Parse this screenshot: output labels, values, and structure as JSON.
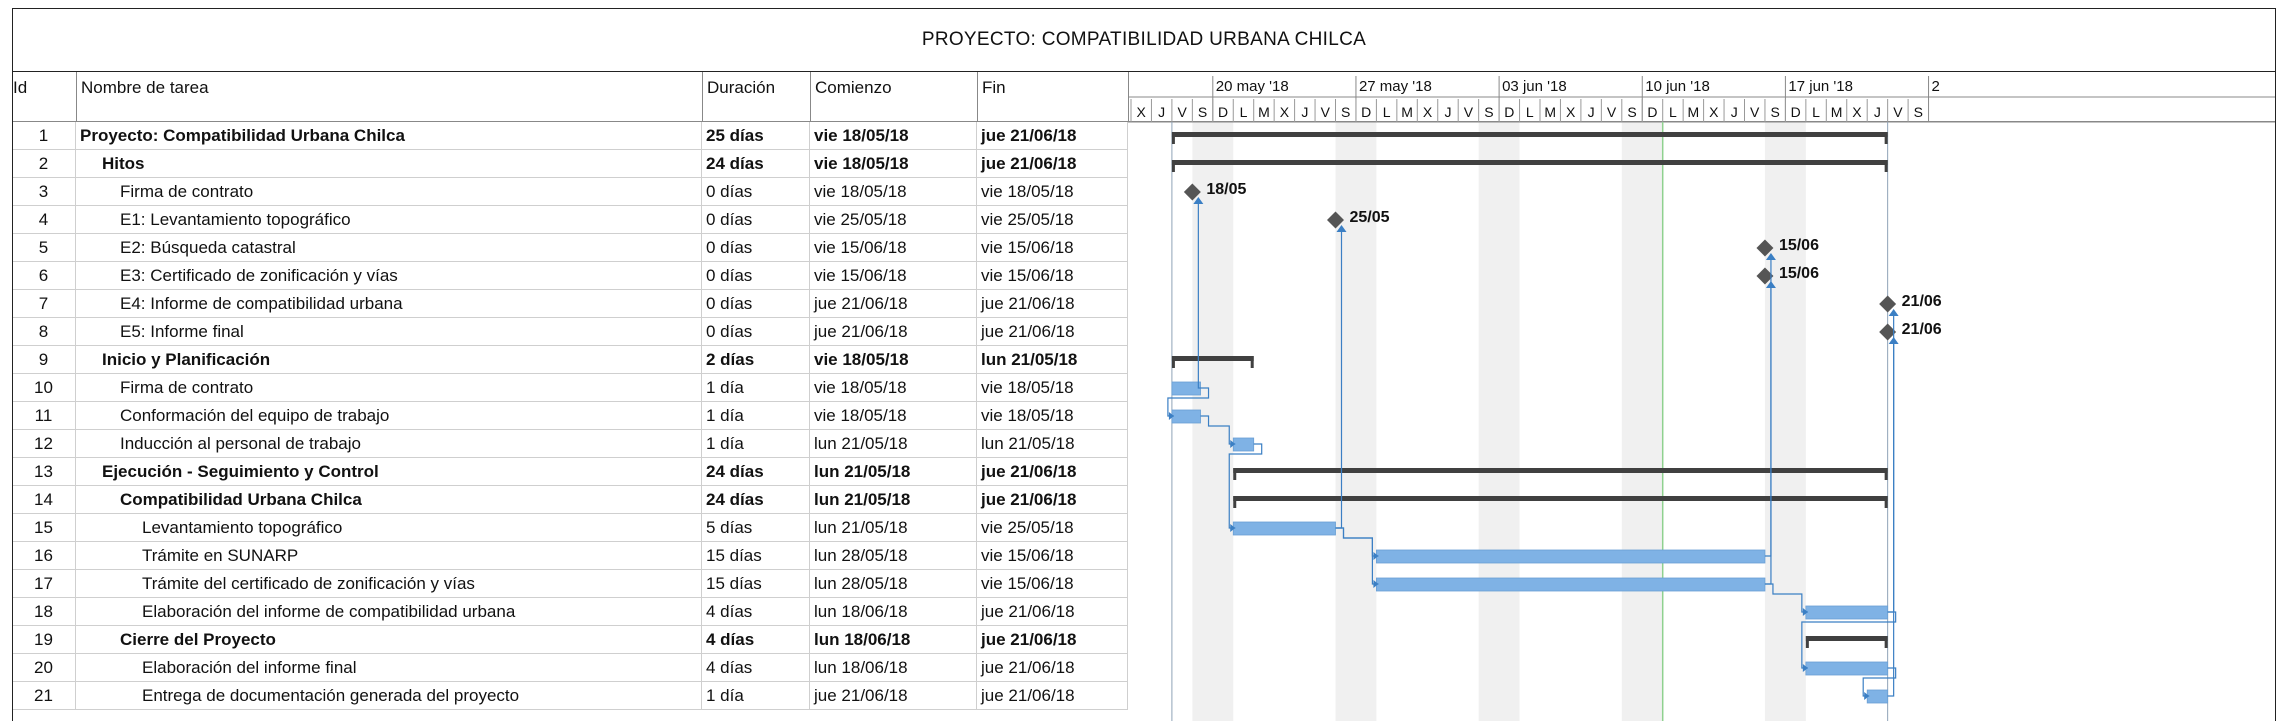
{
  "title": "PROYECTO: COMPATIBILIDAD URBANA CHILCA",
  "columns": {
    "id": "Id",
    "name": "Nombre de tarea",
    "duration": "Duración",
    "start": "Comienzo",
    "end": "Fin"
  },
  "timescale": {
    "weeks": [
      "20 may '18",
      "27 may '18",
      "03 jun '18",
      "10 jun '18",
      "17 jun '18",
      "2"
    ],
    "days": [
      "X",
      "J",
      "V",
      "S",
      "D",
      "L",
      "M",
      "X",
      "J",
      "V",
      "S",
      "D",
      "L",
      "M",
      "X",
      "J",
      "V",
      "S",
      "D",
      "L",
      "M",
      "X",
      "J",
      "V",
      "S",
      "D",
      "L",
      "M",
      "X",
      "J",
      "V",
      "S",
      "D",
      "L",
      "M",
      "X",
      "J",
      "V",
      "S"
    ]
  },
  "tasks": [
    {
      "id": "1",
      "name": "Proyecto: Compatibilidad Urbana Chilca",
      "duration": "25 días",
      "start": "vie 18/05/18",
      "end": "jue 21/06/18",
      "level": 0,
      "bold": true
    },
    {
      "id": "2",
      "name": "Hitos",
      "duration": "24 días",
      "start": "vie 18/05/18",
      "end": "jue 21/06/18",
      "level": 1,
      "bold": true
    },
    {
      "id": "3",
      "name": "Firma de contrato",
      "duration": "0 días",
      "start": "vie 18/05/18",
      "end": "vie 18/05/18",
      "level": 2,
      "bold": false
    },
    {
      "id": "4",
      "name": "E1: Levantamiento topográfico",
      "duration": "0 días",
      "start": "vie 25/05/18",
      "end": "vie 25/05/18",
      "level": 2,
      "bold": false
    },
    {
      "id": "5",
      "name": "E2: Búsqueda catastral",
      "duration": "0 días",
      "start": "vie 15/06/18",
      "end": "vie 15/06/18",
      "level": 2,
      "bold": false
    },
    {
      "id": "6",
      "name": "E3: Certificado de zonificación y vías",
      "duration": "0 días",
      "start": "vie 15/06/18",
      "end": "vie 15/06/18",
      "level": 2,
      "bold": false
    },
    {
      "id": "7",
      "name": "E4: Informe de compatibilidad urbana",
      "duration": "0 días",
      "start": "jue 21/06/18",
      "end": "jue 21/06/18",
      "level": 2,
      "bold": false
    },
    {
      "id": "8",
      "name": "E5: Informe final",
      "duration": "0 días",
      "start": "jue 21/06/18",
      "end": "jue 21/06/18",
      "level": 2,
      "bold": false
    },
    {
      "id": "9",
      "name": "Inicio y Planificación",
      "duration": "2 días",
      "start": "vie 18/05/18",
      "end": "lun 21/05/18",
      "level": 1,
      "bold": true
    },
    {
      "id": "10",
      "name": "Firma de contrato",
      "duration": "1 día",
      "start": "vie 18/05/18",
      "end": "vie 18/05/18",
      "level": 2,
      "bold": false
    },
    {
      "id": "11",
      "name": "Conformación del equipo de trabajo",
      "duration": "1 día",
      "start": "vie 18/05/18",
      "end": "vie 18/05/18",
      "level": 2,
      "bold": false
    },
    {
      "id": "12",
      "name": "Inducción al personal de trabajo",
      "duration": "1 día",
      "start": "lun 21/05/18",
      "end": "lun 21/05/18",
      "level": 2,
      "bold": false
    },
    {
      "id": "13",
      "name": "Ejecución - Seguimiento y Control",
      "duration": "24 días",
      "start": "lun 21/05/18",
      "end": "jue 21/06/18",
      "level": 1,
      "bold": true
    },
    {
      "id": "14",
      "name": "Compatibilidad Urbana Chilca",
      "duration": "24 días",
      "start": "lun 21/05/18",
      "end": "jue 21/06/18",
      "level": 2,
      "bold": true
    },
    {
      "id": "15",
      "name": "Levantamiento topográfico",
      "duration": "5 días",
      "start": "lun 21/05/18",
      "end": "vie 25/05/18",
      "level": 3,
      "bold": false
    },
    {
      "id": "16",
      "name": "Trámite en SUNARP",
      "duration": "15 días",
      "start": "lun 28/05/18",
      "end": "vie 15/06/18",
      "level": 3,
      "bold": false
    },
    {
      "id": "17",
      "name": "Trámite del certificado de zonificación y vías",
      "duration": "15 días",
      "start": "lun 28/05/18",
      "end": "vie 15/06/18",
      "level": 3,
      "bold": false
    },
    {
      "id": "18",
      "name": "Elaboración del informe de compatibilidad urbana",
      "duration": "4 días",
      "start": "lun 18/06/18",
      "end": "jue 21/06/18",
      "level": 3,
      "bold": false
    },
    {
      "id": "19",
      "name": "Cierre del Proyecto",
      "duration": "4 días",
      "start": "lun 18/06/18",
      "end": "jue 21/06/18",
      "level": 2,
      "bold": true
    },
    {
      "id": "20",
      "name": "Elaboración del informe final",
      "duration": "4 días",
      "start": "lun 18/06/18",
      "end": "jue 21/06/18",
      "level": 3,
      "bold": false
    },
    {
      "id": "21",
      "name": "Entrega de documentación generada del proyecto",
      "duration": "1 día",
      "start": "jue 21/06/18",
      "end": "jue 21/06/18",
      "level": 3,
      "bold": false
    }
  ],
  "milestone_labels": {
    "3": "18/05",
    "4": "25/05",
    "5": "15/06",
    "6": "15/06",
    "7": "21/06",
    "8": "21/06"
  },
  "colors": {
    "task_bar": "#7fb2e5",
    "summary_bar": "#404040",
    "milestone": "#555555",
    "link": "#3b7fc4",
    "weekend": "#f0f0f0",
    "today_line": "#8fd18f",
    "grid": "#cfcfcf"
  }
}
